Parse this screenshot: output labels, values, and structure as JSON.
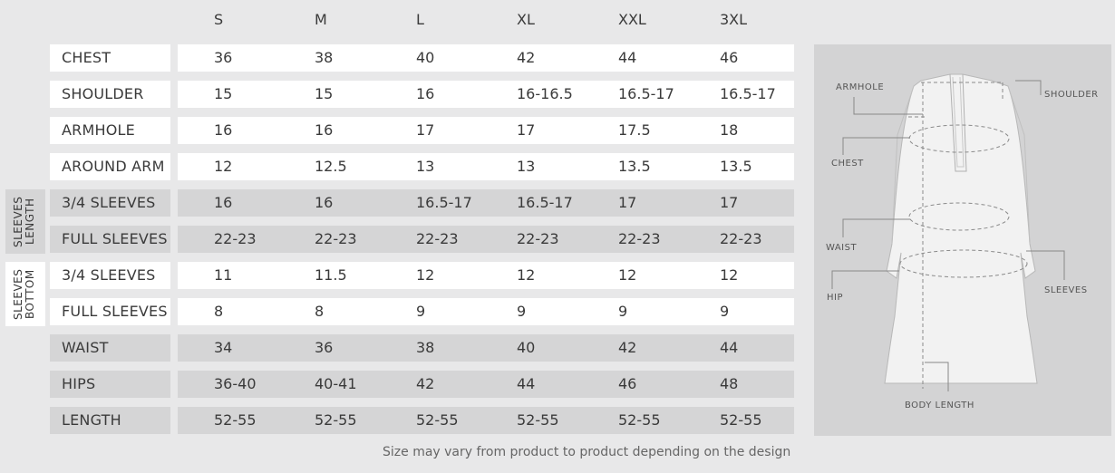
{
  "sizes": [
    "S",
    "M",
    "L",
    "XL",
    "XXL",
    "3XL"
  ],
  "rows": [
    {
      "label": "CHEST",
      "values": [
        "36",
        "38",
        "40",
        "42",
        "44",
        "46"
      ]
    },
    {
      "label": "SHOULDER",
      "values": [
        "15",
        "15",
        "16",
        "16-16.5",
        "16.5-17",
        "16.5-17"
      ]
    },
    {
      "label": "ARMHOLE",
      "values": [
        "16",
        "16",
        "17",
        "17",
        "17.5",
        "18"
      ]
    },
    {
      "label": "AROUND ARM",
      "values": [
        "12",
        "12.5",
        "13",
        "13",
        "13.5",
        "13.5"
      ]
    },
    {
      "label": "3/4 SLEEVES",
      "values": [
        "16",
        "16",
        "16.5-17",
        "16.5-17",
        "17",
        "17"
      ]
    },
    {
      "label": "FULL SLEEVES",
      "values": [
        "22-23",
        "22-23",
        "22-23",
        "22-23",
        "22-23",
        "22-23"
      ]
    },
    {
      "label": "3/4 SLEEVES",
      "values": [
        "11",
        "11.5",
        "12",
        "12",
        "12",
        "12"
      ]
    },
    {
      "label": "FULL SLEEVES",
      "values": [
        "8",
        "8",
        "9",
        "9",
        "9",
        "9"
      ]
    },
    {
      "label": "WAIST",
      "values": [
        "34",
        "36",
        "38",
        "40",
        "42",
        "44"
      ]
    },
    {
      "label": "HIPS",
      "values": [
        "36-40",
        "40-41",
        "42",
        "44",
        "46",
        "48"
      ]
    },
    {
      "label": "LENGTH",
      "values": [
        "52-55",
        "52-55",
        "52-55",
        "52-55",
        "52-55",
        "52-55"
      ]
    }
  ],
  "groups": {
    "sleeves_length": "SLEEVES LENGTH",
    "sleeves_bottom": "SLEEVES BOTTOM"
  },
  "diagram": {
    "armhole": "ARMHOLE",
    "shoulder": "SHOULDER",
    "chest": "CHEST",
    "waist": "WAIST",
    "hip": "HIP",
    "sleeves": "SLEEVES",
    "body_length": "BODY LENGTH"
  },
  "footnote": "Size may vary from product to product depending on the design"
}
